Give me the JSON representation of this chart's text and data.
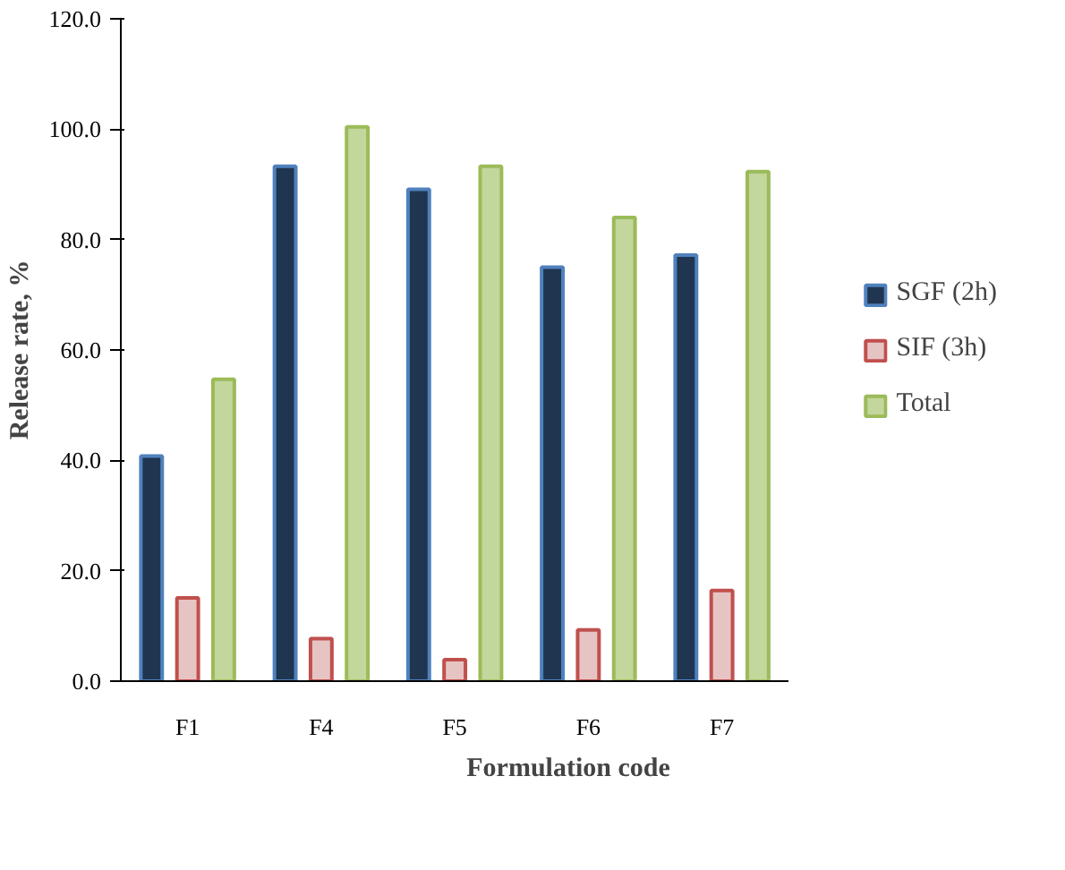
{
  "chart_data": {
    "type": "bar",
    "xlabel": "Formulation code",
    "ylabel": "Release rate, %",
    "categories": [
      "F1",
      "F4",
      "F5",
      "F6",
      "F7"
    ],
    "series": [
      {
        "name": "SGF (2h)",
        "color": "#1f3550",
        "values": [
          40.8,
          93.3,
          89.1,
          75.0,
          77.2
        ]
      },
      {
        "name": "SIF (3h)",
        "color": "#e6c4c4",
        "values": [
          15.1,
          7.7,
          3.9,
          9.3,
          16.4
        ]
      },
      {
        "name": "Total",
        "color": "#c3d69b",
        "values": [
          54.7,
          100.4,
          93.3,
          84.0,
          92.3
        ]
      }
    ],
    "ylim": [
      0,
      120
    ],
    "yticks": [
      {
        "value": 0,
        "label": "0.0"
      },
      {
        "value": 20,
        "label": "20.0"
      },
      {
        "value": 40,
        "label": "40.0"
      },
      {
        "value": 60,
        "label": "60.0"
      },
      {
        "value": 80,
        "label": "80.0"
      },
      {
        "value": 100,
        "label": "100.0"
      },
      {
        "value": 120,
        "label": "120.0"
      }
    ],
    "grid": false,
    "legend": "right"
  }
}
